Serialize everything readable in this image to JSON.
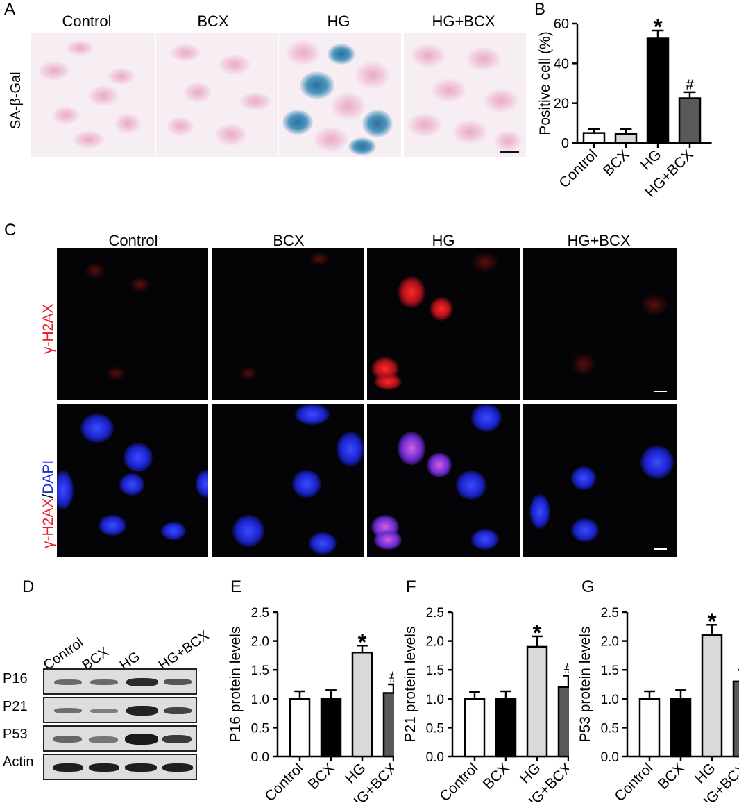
{
  "panels": {
    "A": "A",
    "B": "B",
    "C": "C",
    "D": "D",
    "E": "E",
    "F": "F",
    "G": "G"
  },
  "groups": [
    "Control",
    "BCX",
    "HG",
    "HG+BCX"
  ],
  "panelA": {
    "row_label": "SA-β-Gal"
  },
  "panelC": {
    "row1_label": "γ-H2AX",
    "row2_label_red": "γ-H2AX",
    "row2_label_sep": "/",
    "row2_label_blue": "DAPI",
    "colors": {
      "red": "#e8202a",
      "blue": "#1f2fd8"
    }
  },
  "panelD": {
    "rows": [
      "P16",
      "P21",
      "P53",
      "Actin"
    ]
  },
  "chart_data": [
    {
      "panel": "B",
      "type": "bar",
      "categories": [
        "Control",
        "BCX",
        "HG",
        "HG+BCX"
      ],
      "values": [
        5,
        4.5,
        52.5,
        22.5
      ],
      "errors": [
        2,
        2.5,
        4,
        3
      ],
      "annotations": [
        "",
        "",
        "*",
        "#"
      ],
      "fills": [
        "#ffffff",
        "#d9d9d9",
        "#000000",
        "#595959"
      ],
      "ylabel": "Positive cell (%)",
      "ylim": [
        0,
        60
      ],
      "yticks": [
        0,
        20,
        40,
        60
      ]
    },
    {
      "panel": "E",
      "type": "bar",
      "categories": [
        "Control",
        "BCX",
        "HG",
        "HG+BCX"
      ],
      "values": [
        1.0,
        1.0,
        1.8,
        1.1
      ],
      "errors": [
        0.13,
        0.15,
        0.12,
        0.15
      ],
      "annotations": [
        "",
        "",
        "*",
        "#"
      ],
      "fills": [
        "#ffffff",
        "#000000",
        "#d9d9d9",
        "#595959"
      ],
      "ylabel": "P16 protein levels",
      "ylim": [
        0,
        2.5
      ],
      "yticks": [
        "0.0",
        "0.5",
        "1.0",
        "1.5",
        "2.0",
        "2.5"
      ]
    },
    {
      "panel": "F",
      "type": "bar",
      "categories": [
        "Control",
        "BCX",
        "HG",
        "HG+BCX"
      ],
      "values": [
        1.0,
        1.0,
        1.9,
        1.2
      ],
      "errors": [
        0.12,
        0.13,
        0.18,
        0.2
      ],
      "annotations": [
        "",
        "",
        "*",
        "#"
      ],
      "fills": [
        "#ffffff",
        "#000000",
        "#d9d9d9",
        "#595959"
      ],
      "ylabel": "P21 protein levels",
      "ylim": [
        0,
        2.5
      ],
      "yticks": [
        "0.0",
        "0.5",
        "1.0",
        "1.5",
        "2.0",
        "2.5"
      ]
    },
    {
      "panel": "G",
      "type": "bar",
      "categories": [
        "Control",
        "BCX",
        "HG",
        "HG+BCX"
      ],
      "values": [
        1.0,
        1.0,
        2.1,
        1.3
      ],
      "errors": [
        0.13,
        0.15,
        0.18,
        0.2
      ],
      "annotations": [
        "",
        "",
        "*",
        "#"
      ],
      "fills": [
        "#ffffff",
        "#000000",
        "#d9d9d9",
        "#595959"
      ],
      "ylabel": "P53 protein levels",
      "ylim": [
        0,
        2.5
      ],
      "yticks": [
        "0.0",
        "0.5",
        "1.0",
        "1.5",
        "2.0",
        "2.5"
      ]
    }
  ]
}
